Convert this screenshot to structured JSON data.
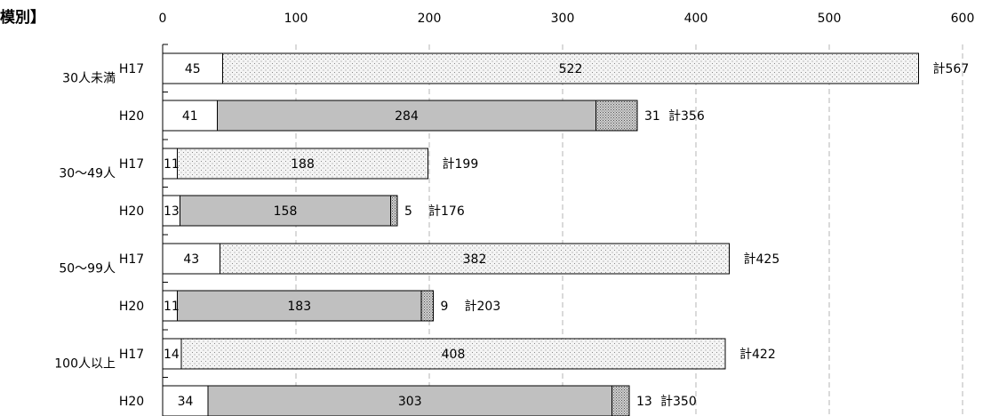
{
  "chart_data": {
    "type": "bar",
    "orientation": "horizontal",
    "stacked": true,
    "title": "模別】",
    "xlim": [
      0,
      600
    ],
    "xticks": [
      0,
      100,
      200,
      300,
      400,
      500,
      600
    ],
    "grid": "vertical dashed",
    "colors": {
      "segment1": "#ffffff",
      "segment2_H17": "#f4f4f4",
      "segment2_H20": "#c0c0c0",
      "segment3": "#d0d0d0"
    },
    "groups": [
      {
        "label": "30人未満",
        "rows": [
          {
            "year": "H17",
            "segments": [
              45,
              522
            ],
            "segment_labels": [
              "45",
              "522"
            ],
            "total_label": "計567"
          },
          {
            "year": "H20",
            "segments": [
              41,
              284,
              31
            ],
            "segment_labels": [
              "41",
              "284",
              "31"
            ],
            "total_label": "計356"
          }
        ]
      },
      {
        "label": "30〜49人",
        "rows": [
          {
            "year": "H17",
            "segments": [
              11,
              188
            ],
            "segment_labels": [
              "11",
              "188"
            ],
            "total_label": "計199"
          },
          {
            "year": "H20",
            "segments": [
              13,
              158,
              5
            ],
            "segment_labels": [
              "13",
              "158",
              "5"
            ],
            "total_label": "計176"
          }
        ]
      },
      {
        "label": "50〜99人",
        "rows": [
          {
            "year": "H17",
            "segments": [
              43,
              382
            ],
            "segment_labels": [
              "43",
              "382"
            ],
            "total_label": "計425"
          },
          {
            "year": "H20",
            "segments": [
              11,
              183,
              9
            ],
            "segment_labels": [
              "11",
              "183",
              "9"
            ],
            "total_label": "計203"
          }
        ]
      },
      {
        "label": "100人以上",
        "rows": [
          {
            "year": "H17",
            "segments": [
              14,
              408
            ],
            "segment_labels": [
              "14",
              "408"
            ],
            "total_label": "計422"
          },
          {
            "year": "H20",
            "segments": [
              34,
              303,
              13
            ],
            "segment_labels": [
              "34",
              "303",
              "13"
            ],
            "total_label": "計350"
          }
        ]
      }
    ]
  }
}
